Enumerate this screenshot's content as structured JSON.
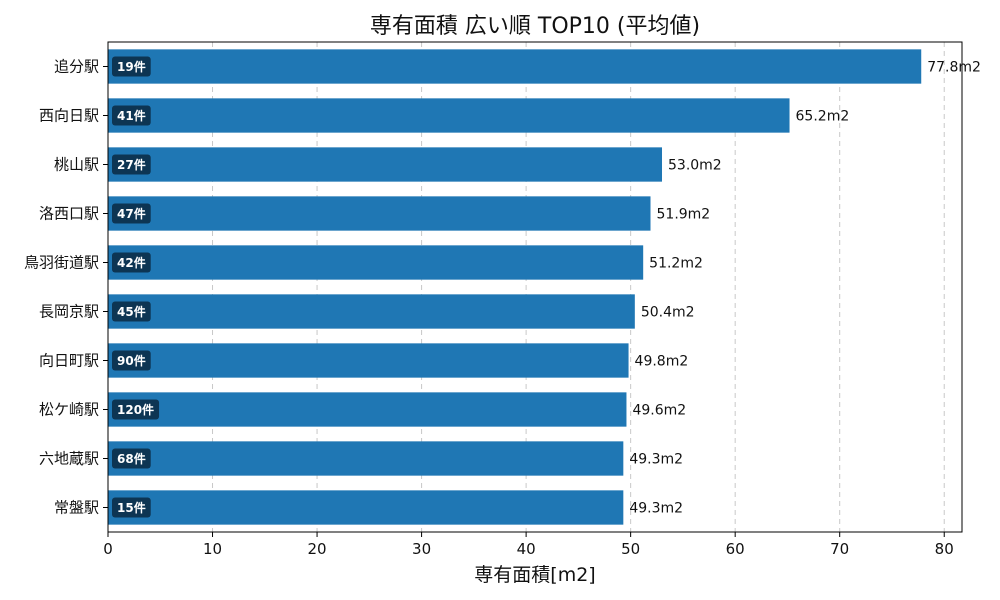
{
  "chart_data": {
    "type": "bar",
    "orientation": "horizontal",
    "title": "専有面積 広い順 TOP10 (平均値)",
    "xlabel": "専有面積[m2]",
    "ylabel": "",
    "xlim": [
      0,
      81.7
    ],
    "xticks": [
      0,
      10,
      20,
      30,
      40,
      50,
      60,
      70,
      80
    ],
    "grid": "x-dashed",
    "bar_color": "#1f77b4",
    "count_badge_color": "#0d3553",
    "categories": [
      "追分駅",
      "西向日駅",
      "桃山駅",
      "洛西口駅",
      "鳥羽街道駅",
      "長岡京駅",
      "向日町駅",
      "松ケ崎駅",
      "六地蔵駅",
      "常盤駅"
    ],
    "values": [
      77.8,
      65.2,
      53.0,
      51.9,
      51.2,
      50.4,
      49.8,
      49.6,
      49.3,
      49.3
    ],
    "value_labels": [
      "77.8m2",
      "65.2m2",
      "53.0m2",
      "51.9m2",
      "51.2m2",
      "50.4m2",
      "49.8m2",
      "49.6m2",
      "49.3m2",
      "49.3m2"
    ],
    "count_labels": [
      "19件",
      "41件",
      "27件",
      "47件",
      "42件",
      "45件",
      "90件",
      "120件",
      "68件",
      "15件"
    ]
  }
}
